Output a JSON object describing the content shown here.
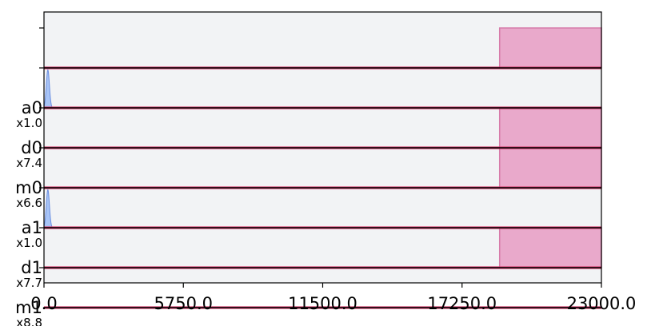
{
  "chart_data": {
    "type": "area",
    "title": "",
    "xlabel": "",
    "ylabel": "",
    "xlim": [
      0,
      23000
    ],
    "x_ticks": [
      "0.0",
      "5750.0",
      "11500.0",
      "17250.0",
      "23000.0"
    ],
    "x_tick_values": [
      0,
      5750,
      11500,
      17250,
      23000
    ],
    "grid": false,
    "legend": "none",
    "channels": [
      {
        "name": "",
        "scale": "",
        "pulses": [
          {
            "shape": "flat-top",
            "start": 18800,
            "end": 23000,
            "amplitude": 1.0,
            "color": "#e9a9cb"
          }
        ]
      },
      {
        "name": "a0",
        "scale": "x1.0",
        "pulses": [
          {
            "shape": "gaussian",
            "start": 0,
            "end": 320,
            "amplitude": 0.95,
            "color": "#a8c4f6"
          }
        ]
      },
      {
        "name": "d0",
        "scale": "x7.4",
        "pulses": [
          {
            "shape": "flat-top",
            "start": 18800,
            "end": 23000,
            "amplitude": 1.0,
            "color": "#e9a9cb"
          }
        ]
      },
      {
        "name": "m0",
        "scale": "x6.6",
        "pulses": [
          {
            "shape": "flat-top",
            "start": 18800,
            "end": 23000,
            "amplitude": 1.0,
            "color": "#e9a9cb"
          }
        ]
      },
      {
        "name": "a1",
        "scale": "x1.0",
        "pulses": [
          {
            "shape": "gaussian",
            "start": 0,
            "end": 320,
            "amplitude": 0.95,
            "color": "#a8c4f6"
          }
        ]
      },
      {
        "name": "d1",
        "scale": "x7.7",
        "pulses": [
          {
            "shape": "flat-top",
            "start": 18800,
            "end": 23000,
            "amplitude": 1.0,
            "color": "#e9a9cb"
          }
        ]
      },
      {
        "name": "m1",
        "scale": "x8.8",
        "pulses": []
      }
    ],
    "colors": {
      "background": "#f2f3f5",
      "baseline": "#000000",
      "baseline_highlight": "#d23a6a",
      "drive_pulse": "#e9a9cb",
      "drive_edge": "#d67aa9",
      "gaussian_pulse": "#a8c4f6",
      "gaussian_edge": "#6c8fe0"
    }
  }
}
